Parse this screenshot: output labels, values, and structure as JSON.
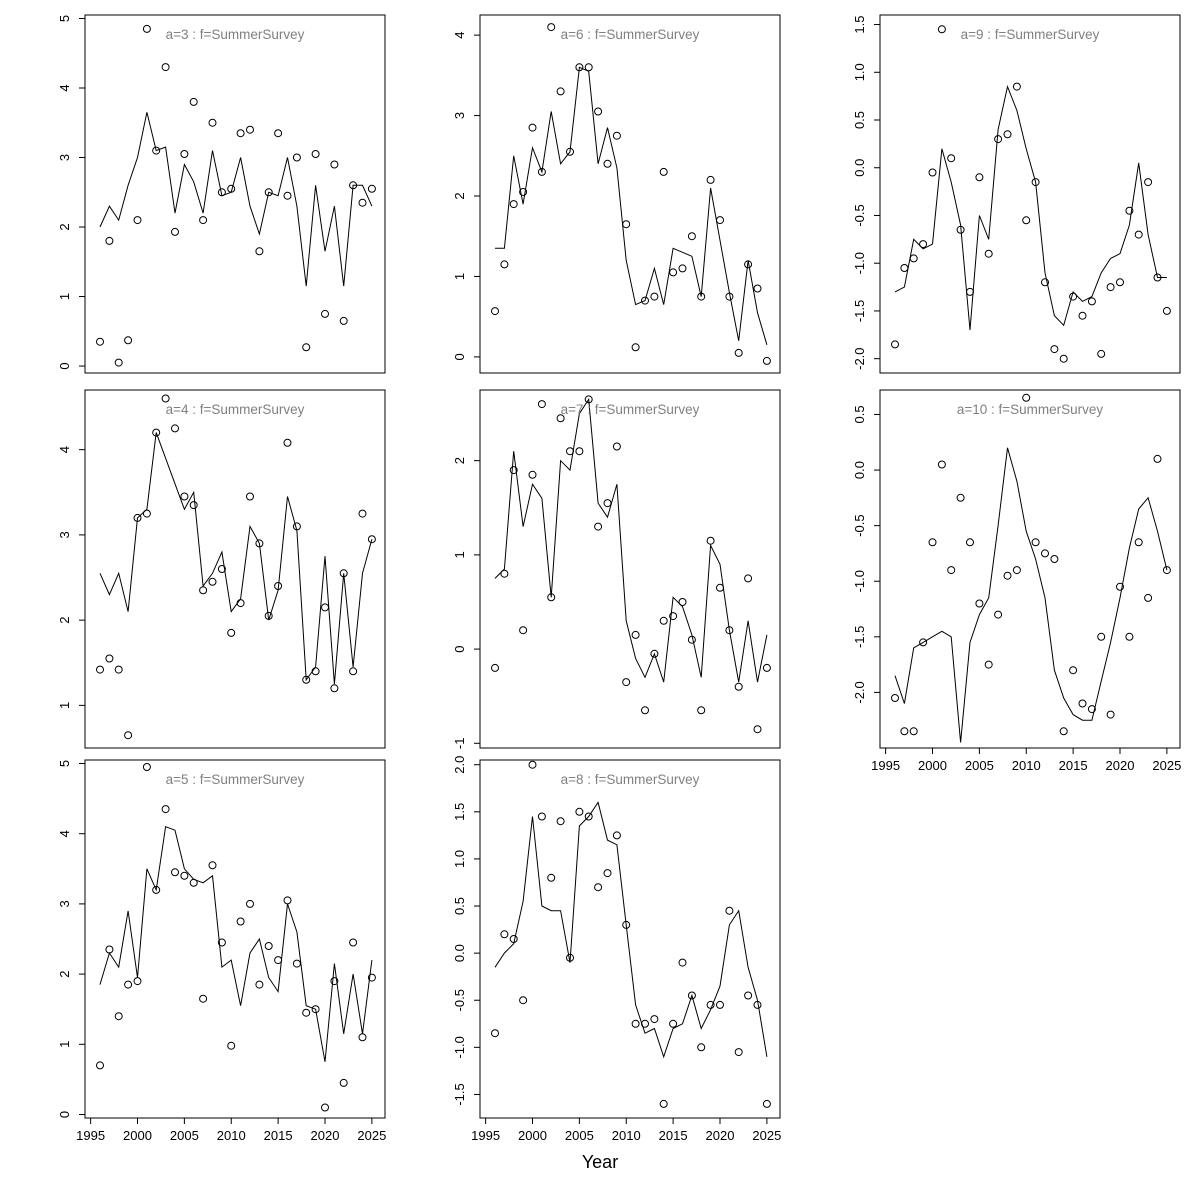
{
  "figure": {
    "xlabel": "Year",
    "colors": {
      "axis": "#000000",
      "line": "#000000",
      "point": "#000000",
      "title": "#808080",
      "background": "#ffffff"
    }
  },
  "chart_data": {
    "type": "line",
    "note": "small-multiples: observed points (circles) and fitted line per age group",
    "xlabel": "Year",
    "x_years": [
      1996,
      1997,
      1998,
      1999,
      2000,
      2001,
      2002,
      2003,
      2004,
      2005,
      2006,
      2007,
      2008,
      2009,
      2010,
      2011,
      2012,
      2013,
      2014,
      2015,
      2016,
      2017,
      2018,
      2019,
      2020,
      2021,
      2022,
      2023,
      2024,
      2025
    ],
    "xticks": [
      1995,
      2000,
      2005,
      2010,
      2015,
      2020,
      2025
    ],
    "panels": [
      {
        "title": "a=3  :  f=SummerSurvey",
        "ylim": [
          -0.1,
          5.05
        ],
        "ytick_values": [
          0,
          1,
          2,
          3,
          4,
          5
        ],
        "ytick_labels": [
          "0",
          "1",
          "2",
          "3",
          "4",
          "5"
        ],
        "show_x_labels": false,
        "obs": [
          0.35,
          1.8,
          0.05,
          0.37,
          2.1,
          4.85,
          3.1,
          4.3,
          1.93,
          3.05,
          3.8,
          2.1,
          3.5,
          2.5,
          2.55,
          3.35,
          3.4,
          1.65,
          2.5,
          3.35,
          2.45,
          3.0,
          0.27,
          3.05,
          0.75,
          2.9,
          0.65,
          2.6,
          2.35,
          2.55
        ],
        "fit": [
          2.0,
          2.3,
          2.1,
          2.6,
          3.0,
          3.65,
          3.1,
          3.15,
          2.2,
          2.9,
          2.65,
          2.2,
          3.1,
          2.45,
          2.5,
          3.0,
          2.3,
          1.9,
          2.5,
          2.45,
          3.0,
          2.3,
          1.15,
          2.6,
          1.65,
          2.3,
          1.15,
          2.6,
          2.6,
          2.3
        ]
      },
      {
        "title": "a=4  :  f=SummerSurvey",
        "ylim": [
          0.5,
          4.7
        ],
        "ytick_values": [
          1,
          2,
          3,
          4
        ],
        "ytick_labels": [
          "1",
          "2",
          "3",
          "4"
        ],
        "show_x_labels": false,
        "obs": [
          1.42,
          1.55,
          1.42,
          0.65,
          3.2,
          3.25,
          4.2,
          4.6,
          4.25,
          3.45,
          3.35,
          2.35,
          2.45,
          2.6,
          1.85,
          2.2,
          3.45,
          2.9,
          2.05,
          2.4,
          4.08,
          3.1,
          1.3,
          1.4,
          2.15,
          1.2,
          2.55,
          1.4,
          3.25,
          2.95
        ],
        "fit": [
          2.55,
          2.3,
          2.55,
          2.1,
          3.2,
          3.3,
          4.2,
          3.9,
          3.6,
          3.3,
          3.5,
          2.4,
          2.55,
          2.8,
          2.1,
          2.25,
          3.1,
          2.9,
          2.0,
          2.35,
          3.45,
          3.05,
          1.3,
          1.45,
          2.75,
          1.25,
          2.55,
          1.45,
          2.55,
          2.95
        ]
      },
      {
        "title": "a=5  :  f=SummerSurvey",
        "ylim": [
          -0.05,
          5.05
        ],
        "ytick_values": [
          0,
          1,
          2,
          3,
          4,
          5
        ],
        "ytick_labels": [
          "0",
          "1",
          "2",
          "3",
          "4",
          "5"
        ],
        "show_x_labels": true,
        "obs": [
          0.7,
          2.35,
          1.4,
          1.85,
          1.9,
          4.95,
          3.2,
          4.35,
          3.45,
          3.4,
          3.3,
          1.65,
          3.55,
          2.45,
          0.98,
          2.75,
          3.0,
          1.85,
          2.4,
          2.2,
          3.05,
          2.15,
          1.45,
          1.5,
          0.1,
          1.9,
          0.45,
          2.45,
          1.1,
          1.95
        ],
        "fit": [
          1.85,
          2.3,
          2.1,
          2.9,
          1.95,
          3.5,
          3.2,
          4.1,
          4.05,
          3.5,
          3.35,
          3.3,
          3.4,
          2.1,
          2.2,
          1.55,
          2.3,
          2.5,
          1.95,
          1.75,
          3.0,
          2.6,
          1.55,
          1.5,
          0.75,
          2.15,
          1.15,
          2.0,
          1.15,
          2.2
        ]
      },
      {
        "title": "a=6  :  f=SummerSurvey",
        "ylim": [
          -0.2,
          4.25
        ],
        "ytick_values": [
          0,
          1,
          2,
          3,
          4
        ],
        "ytick_labels": [
          "0",
          "1",
          "2",
          "3",
          "4"
        ],
        "show_x_labels": false,
        "obs": [
          0.57,
          1.15,
          1.9,
          2.05,
          2.85,
          2.3,
          4.1,
          3.3,
          2.55,
          3.6,
          3.6,
          3.05,
          2.4,
          2.75,
          1.65,
          0.12,
          0.7,
          0.75,
          2.3,
          1.05,
          1.1,
          1.5,
          0.75,
          2.2,
          1.7,
          0.75,
          0.05,
          1.15,
          0.85,
          -0.05
        ],
        "fit": [
          1.35,
          1.35,
          2.5,
          1.9,
          2.6,
          2.3,
          3.05,
          2.4,
          2.55,
          3.6,
          3.55,
          2.4,
          2.85,
          2.35,
          1.2,
          0.65,
          0.7,
          1.1,
          0.65,
          1.35,
          1.3,
          1.25,
          0.75,
          2.1,
          1.45,
          0.8,
          0.2,
          1.2,
          0.55,
          0.15
        ]
      },
      {
        "title": "a=7  :  f=SummerSurvey",
        "ylim": [
          -1.05,
          2.75
        ],
        "ytick_values": [
          -1,
          0,
          1,
          2
        ],
        "ytick_labels": [
          "-1",
          "0",
          "1",
          "2"
        ],
        "show_x_labels": false,
        "obs": [
          -0.2,
          0.8,
          1.9,
          0.2,
          1.85,
          2.6,
          0.55,
          2.45,
          2.1,
          2.1,
          2.65,
          1.3,
          1.55,
          2.15,
          -0.35,
          0.15,
          -0.65,
          -0.05,
          0.3,
          0.35,
          0.5,
          0.1,
          -0.65,
          1.15,
          0.65,
          0.2,
          -0.4,
          0.75,
          -0.85,
          -0.2
        ],
        "fit": [
          0.75,
          0.85,
          2.1,
          1.3,
          1.75,
          1.6,
          0.55,
          2.0,
          1.9,
          2.5,
          2.65,
          1.55,
          1.4,
          1.75,
          0.3,
          -0.1,
          -0.3,
          -0.05,
          -0.35,
          0.55,
          0.45,
          0.15,
          -0.3,
          1.1,
          0.9,
          0.2,
          -0.35,
          0.3,
          -0.35,
          0.15
        ]
      },
      {
        "title": "a=8  :  f=SummerSurvey",
        "ylim": [
          -1.75,
          2.05
        ],
        "ytick_values": [
          -1.5,
          -1.0,
          -0.5,
          0.0,
          0.5,
          1.0,
          1.5,
          2.0
        ],
        "ytick_labels": [
          "-1.5",
          "-1.0",
          "-0.5",
          "0.0",
          "0.5",
          "1.0",
          "1.5",
          "2.0"
        ],
        "show_x_labels": true,
        "obs": [
          -0.85,
          0.2,
          0.15,
          -0.5,
          2.0,
          1.45,
          0.8,
          1.4,
          -0.05,
          1.5,
          1.45,
          0.7,
          0.85,
          1.25,
          0.3,
          -0.75,
          -0.75,
          -0.7,
          -1.6,
          -0.75,
          -0.1,
          -0.45,
          -1.0,
          -0.55,
          -0.55,
          0.45,
          -1.05,
          -0.45,
          -0.55,
          -1.6
        ],
        "fit": [
          -0.15,
          0.0,
          0.1,
          0.55,
          1.45,
          0.5,
          0.45,
          0.45,
          -0.1,
          1.35,
          1.45,
          1.6,
          1.2,
          1.15,
          0.3,
          -0.55,
          -0.85,
          -0.8,
          -1.1,
          -0.8,
          -0.75,
          -0.45,
          -0.8,
          -0.6,
          -0.35,
          0.3,
          0.45,
          -0.15,
          -0.5,
          -1.1
        ]
      },
      {
        "title": "a=9  :  f=SummerSurvey",
        "ylim": [
          -2.15,
          1.6
        ],
        "ytick_values": [
          -2.0,
          -1.5,
          -1.0,
          -0.5,
          0.0,
          0.5,
          1.0,
          1.5
        ],
        "ytick_labels": [
          "-2.0",
          "-1.5",
          "-1.0",
          "-0.5",
          "0.0",
          "0.5",
          "1.0",
          "1.5"
        ],
        "show_x_labels": false,
        "obs": [
          -1.85,
          -1.05,
          -0.95,
          -0.8,
          -0.05,
          1.45,
          0.1,
          -0.65,
          -1.3,
          -0.1,
          -0.9,
          0.3,
          0.35,
          0.85,
          -0.55,
          -0.15,
          -1.2,
          -1.9,
          -2.0,
          -1.35,
          -1.55,
          -1.4,
          -1.95,
          -1.25,
          -1.2,
          -0.45,
          -0.7,
          -0.15,
          -1.15,
          -1.5
        ],
        "fit": [
          -1.3,
          -1.25,
          -0.75,
          -0.85,
          -0.8,
          0.2,
          -0.15,
          -0.6,
          -1.7,
          -0.5,
          -0.75,
          0.4,
          0.85,
          0.6,
          0.2,
          -0.15,
          -1.1,
          -1.55,
          -1.65,
          -1.3,
          -1.4,
          -1.35,
          -1.1,
          -0.95,
          -0.9,
          -0.6,
          0.05,
          -0.7,
          -1.15,
          -1.15
        ]
      },
      {
        "title": "a=10  :  f=SummerSurvey",
        "ylim": [
          -2.5,
          0.72
        ],
        "ytick_values": [
          -2.0,
          -1.5,
          -1.0,
          -0.5,
          0.0,
          0.5
        ],
        "ytick_labels": [
          "-2.0",
          "-1.5",
          "-1.0",
          "-0.5",
          "0.0",
          "0.5"
        ],
        "show_x_labels": true,
        "obs": [
          -2.05,
          -2.35,
          -2.35,
          -1.55,
          -0.65,
          0.05,
          -0.9,
          -0.25,
          -0.65,
          -1.2,
          -1.75,
          -1.3,
          -0.95,
          -0.9,
          0.65,
          -0.65,
          -0.75,
          -0.8,
          -2.35,
          -1.8,
          -2.1,
          -2.15,
          -1.5,
          -2.2,
          -1.05,
          -1.5,
          -0.65,
          -1.15,
          0.1,
          -0.9
        ],
        "fit": [
          -1.85,
          -2.1,
          -1.6,
          -1.55,
          -1.5,
          -1.45,
          -1.5,
          -2.45,
          -1.55,
          -1.3,
          -1.15,
          -0.5,
          0.2,
          -0.1,
          -0.55,
          -0.8,
          -1.15,
          -1.8,
          -2.05,
          -2.2,
          -2.25,
          -2.25,
          -1.9,
          -1.55,
          -1.15,
          -0.7,
          -0.35,
          -0.25,
          -0.55,
          -0.9
        ]
      }
    ]
  }
}
